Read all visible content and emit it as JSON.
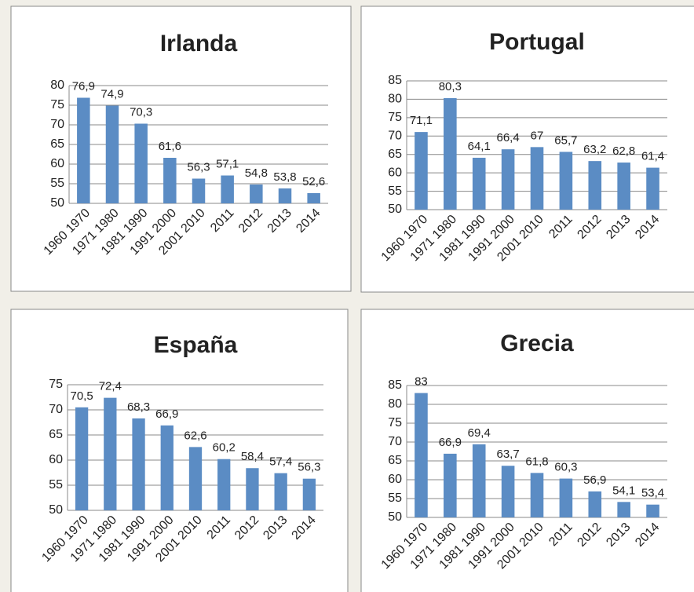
{
  "chart_data": [
    {
      "type": "bar",
      "title": "Irlanda",
      "color": "#5b8cc4",
      "grid": true,
      "categories": [
        "1960 1970",
        "1971 1980",
        "1981 1990",
        "1991 2000",
        "2001 2010",
        "2011",
        "2012",
        "2013",
        "2014"
      ],
      "values": [
        76.9,
        74.9,
        70.3,
        61.6,
        56.3,
        57.1,
        54.8,
        53.8,
        52.6
      ],
      "value_labels": [
        "76,9",
        "74,9",
        "70,3",
        "61,6",
        "56,3",
        "57,1",
        "54,8",
        "53,8",
        "52,6"
      ],
      "ylim": [
        50,
        80
      ],
      "yticks": [
        50,
        55,
        60,
        65,
        70,
        75,
        80
      ]
    },
    {
      "type": "bar",
      "title": "Portugal",
      "color": "#5b8cc4",
      "grid": true,
      "categories": [
        "1960 1970",
        "1971 1980",
        "1981 1990",
        "1991 2000",
        "2001 2010",
        "2011",
        "2012",
        "2013",
        "2014"
      ],
      "values": [
        71.1,
        80.3,
        64.1,
        66.4,
        67,
        65.7,
        63.2,
        62.8,
        61.4
      ],
      "value_labels": [
        "71,1",
        "80,3",
        "64,1",
        "66,4",
        "67",
        "65,7",
        "63,2",
        "62,8",
        "61,4"
      ],
      "ylim": [
        50,
        85
      ],
      "yticks": [
        50,
        55,
        60,
        65,
        70,
        75,
        80,
        85
      ]
    },
    {
      "type": "bar",
      "title": "España",
      "color": "#5b8cc4",
      "grid": true,
      "categories": [
        "1960 1970",
        "1971 1980",
        "1981 1990",
        "1991 2000",
        "2001 2010",
        "2011",
        "2012",
        "2013",
        "2014"
      ],
      "values": [
        70.5,
        72.4,
        68.3,
        66.9,
        62.6,
        60.2,
        58.4,
        57.4,
        56.3
      ],
      "value_labels": [
        "70,5",
        "72,4",
        "68,3",
        "66,9",
        "62,6",
        "60,2",
        "58,4",
        "57,4",
        "56,3"
      ],
      "ylim": [
        50,
        75
      ],
      "yticks": [
        50,
        55,
        60,
        65,
        70,
        75
      ]
    },
    {
      "type": "bar",
      "title": "Grecia",
      "color": "#5b8cc4",
      "grid": true,
      "categories": [
        "1960 1970",
        "1971 1980",
        "1981 1990",
        "1991 2000",
        "2001 2010",
        "2011",
        "2012",
        "2013",
        "2014"
      ],
      "values": [
        83,
        66.9,
        69.4,
        63.7,
        61.8,
        60.3,
        56.9,
        54.1,
        53.4
      ],
      "value_labels": [
        "83",
        "66,9",
        "69,4",
        "63,7",
        "61,8",
        "60,3",
        "56,9",
        "54,1",
        "53,4"
      ],
      "ylim": [
        50,
        85
      ],
      "yticks": [
        50,
        55,
        60,
        65,
        70,
        75,
        80,
        85
      ]
    }
  ]
}
